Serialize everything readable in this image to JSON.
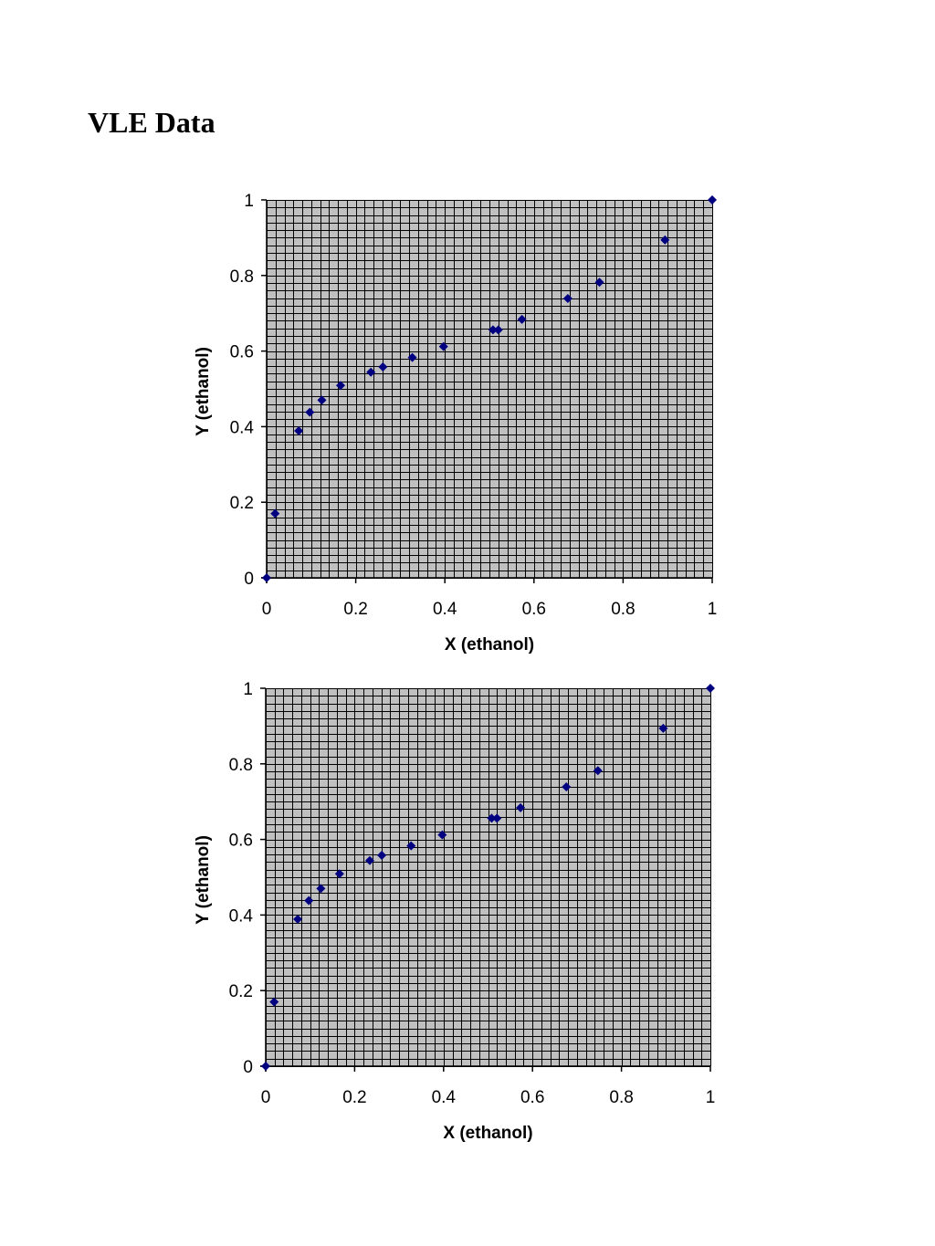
{
  "page": {
    "title": "VLE Data"
  },
  "chart_data": [
    {
      "type": "scatter",
      "title": "",
      "xlabel": "X (ethanol)",
      "ylabel": "Y (ethanol)",
      "xlim": [
        0,
        1
      ],
      "ylim": [
        0,
        1
      ],
      "x_ticks": [
        0,
        0.2,
        0.4,
        0.6,
        0.8,
        1
      ],
      "y_ticks": [
        0,
        0.2,
        0.4,
        0.6,
        0.8,
        1
      ],
      "x_tick_labels": [
        "0",
        "0.2",
        "0.4",
        "0.6",
        "0.8",
        "1"
      ],
      "y_tick_labels": [
        "0",
        "0.2",
        "0.4",
        "0.6",
        "0.8",
        "1"
      ],
      "grid": true,
      "grid_minor_step": 0.02,
      "plot_background": "#c0c0c0",
      "grid_color": "#000000",
      "marker": "diamond",
      "marker_color": "#000080",
      "series": [
        {
          "points": [
            {
              "x": 0,
              "y": 0
            },
            {
              "x": 0.019,
              "y": 0.17
            },
            {
              "x": 0.072,
              "y": 0.389
            },
            {
              "x": 0.097,
              "y": 0.438
            },
            {
              "x": 0.124,
              "y": 0.47
            },
            {
              "x": 0.166,
              "y": 0.509
            },
            {
              "x": 0.234,
              "y": 0.544
            },
            {
              "x": 0.261,
              "y": 0.558
            },
            {
              "x": 0.327,
              "y": 0.583
            },
            {
              "x": 0.397,
              "y": 0.612
            },
            {
              "x": 0.508,
              "y": 0.656
            },
            {
              "x": 0.52,
              "y": 0.656
            },
            {
              "x": 0.573,
              "y": 0.684
            },
            {
              "x": 0.676,
              "y": 0.739
            },
            {
              "x": 0.747,
              "y": 0.782
            },
            {
              "x": 0.894,
              "y": 0.894
            },
            {
              "x": 1,
              "y": 1
            }
          ]
        }
      ]
    },
    {
      "type": "scatter",
      "title": "",
      "xlabel": "X (ethanol)",
      "ylabel": "Y (ethanol)",
      "xlim": [
        0,
        1
      ],
      "ylim": [
        0,
        1
      ],
      "x_ticks": [
        0,
        0.2,
        0.4,
        0.6,
        0.8,
        1
      ],
      "y_ticks": [
        0,
        0.2,
        0.4,
        0.6,
        0.8,
        1
      ],
      "x_tick_labels": [
        "0",
        "0.2",
        "0.4",
        "0.6",
        "0.8",
        "1"
      ],
      "y_tick_labels": [
        "0",
        "0.2",
        "0.4",
        "0.6",
        "0.8",
        "1"
      ],
      "grid": true,
      "grid_minor_step": 0.02,
      "plot_background": "#c0c0c0",
      "grid_color": "#000000",
      "marker": "diamond",
      "marker_color": "#000080",
      "series": [
        {
          "points": [
            {
              "x": 0,
              "y": 0
            },
            {
              "x": 0.019,
              "y": 0.17
            },
            {
              "x": 0.072,
              "y": 0.389
            },
            {
              "x": 0.097,
              "y": 0.438
            },
            {
              "x": 0.124,
              "y": 0.47
            },
            {
              "x": 0.166,
              "y": 0.509
            },
            {
              "x": 0.234,
              "y": 0.544
            },
            {
              "x": 0.261,
              "y": 0.558
            },
            {
              "x": 0.327,
              "y": 0.583
            },
            {
              "x": 0.397,
              "y": 0.612
            },
            {
              "x": 0.508,
              "y": 0.656
            },
            {
              "x": 0.52,
              "y": 0.656
            },
            {
              "x": 0.573,
              "y": 0.684
            },
            {
              "x": 0.676,
              "y": 0.739
            },
            {
              "x": 0.747,
              "y": 0.782
            },
            {
              "x": 0.894,
              "y": 0.894
            },
            {
              "x": 1,
              "y": 1
            }
          ]
        }
      ]
    }
  ]
}
